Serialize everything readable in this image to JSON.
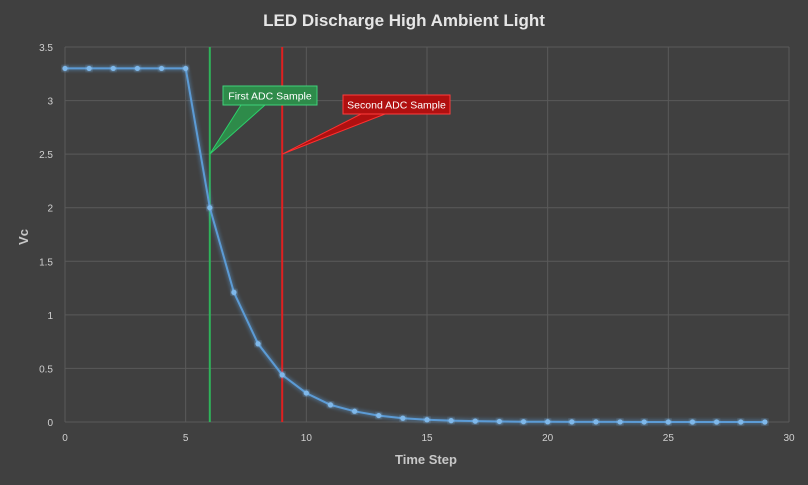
{
  "chart_data": {
    "type": "line",
    "title": "LED Discharge High Ambient Light",
    "xlabel": "Time Step",
    "ylabel": "Vc",
    "xlim": [
      0,
      30
    ],
    "ylim": [
      0,
      3.5
    ],
    "xticks": [
      0,
      5,
      10,
      15,
      20,
      25,
      30
    ],
    "yticks": [
      0,
      0.5,
      1,
      1.5,
      2,
      2.5,
      3,
      3.5
    ],
    "grid": true,
    "series": [
      {
        "color": "#5b9bd5",
        "x": [
          0,
          1,
          2,
          3,
          4,
          5,
          6,
          7,
          8,
          9,
          10,
          11,
          12,
          13,
          14,
          15,
          16,
          17,
          18,
          19,
          20,
          21,
          22,
          23,
          24,
          25,
          26,
          27,
          28,
          29
        ],
        "y": [
          3.3,
          3.3,
          3.3,
          3.3,
          3.3,
          3.3,
          2.0,
          1.21,
          0.73,
          0.44,
          0.27,
          0.16,
          0.1,
          0.06,
          0.035,
          0.021,
          0.013,
          0.008,
          0.005,
          0.003,
          0.002,
          0.001,
          0.001,
          0.0005,
          0.0003,
          0.0002,
          0.0001,
          0.0001,
          0.0,
          0.0
        ]
      }
    ],
    "markers": [
      {
        "x": 6,
        "color": "#2fb35a",
        "label": "First ADC Sample",
        "label_color": "#2e8b4a",
        "pointer_y": 2.5
      },
      {
        "x": 9,
        "color": "#e02020",
        "label": "Second ADC Sample",
        "label_color": "#b01010",
        "pointer_y": 2.5
      }
    ]
  }
}
